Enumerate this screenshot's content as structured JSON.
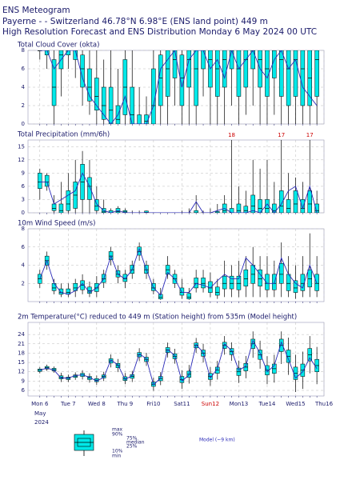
{
  "header": {
    "title": "ENS Meteogram",
    "location": "Payerne -  - Switzerland 46.78°N 6.98°E (ENS land point) 449 m",
    "run": "High Resolution Forecast and ENS Distribution Monday  6 May 2024 00 UTC"
  },
  "time": {
    "x": [
      0,
      6,
      12,
      18,
      24,
      30,
      36,
      42,
      48,
      54,
      60,
      66,
      72,
      78,
      84,
      90,
      96,
      102,
      108,
      114,
      120,
      126,
      132,
      138,
      144,
      150,
      156,
      162,
      168,
      174,
      180,
      186,
      192,
      198,
      204,
      210,
      216,
      222,
      228,
      234
    ],
    "xlim": [
      -10,
      240
    ],
    "xticks": [
      {
        "value": 0,
        "label": "Mon 6"
      },
      {
        "value": 24,
        "label": "Tue 7"
      },
      {
        "value": 48,
        "label": "Wed 8"
      },
      {
        "value": 72,
        "label": "Thu 9"
      },
      {
        "value": 96,
        "label": "Fri10"
      },
      {
        "value": 120,
        "label": "Sat11"
      },
      {
        "value": 144,
        "label": "Sun12",
        "color": "#cc0000"
      },
      {
        "value": 168,
        "label": "Mon13"
      },
      {
        "value": 192,
        "label": "Tue14"
      },
      {
        "value": 216,
        "label": "Wed15"
      },
      {
        "value": 240,
        "label": "Thu16"
      }
    ],
    "month": "May",
    "year": "2024"
  },
  "chart_data": [
    {
      "type": "boxplot",
      "title": "Total Cloud Cover (okta)",
      "ylim": [
        0,
        8
      ],
      "yticks": [
        0,
        2,
        4,
        6,
        8
      ],
      "grid": true,
      "color": "#00e8e8",
      "min": [
        7,
        6,
        0,
        3,
        6,
        5,
        2,
        1,
        0,
        0,
        0,
        0,
        0,
        0,
        0,
        0,
        0,
        0,
        0,
        2,
        0,
        0,
        0,
        3,
        0,
        0,
        0,
        2,
        0,
        1,
        2,
        0,
        0,
        1,
        0,
        0,
        0,
        0,
        0,
        0
      ],
      "q25": [
        8,
        7.5,
        2,
        6,
        7.5,
        7,
        4,
        2.5,
        1.5,
        0.5,
        0,
        0,
        1,
        0,
        0,
        0,
        0,
        2,
        3,
        5,
        2,
        4,
        2,
        6,
        4,
        3,
        4,
        6,
        3,
        4,
        6,
        4,
        3,
        5,
        3,
        2,
        3,
        2,
        2,
        3
      ],
      "median": [
        8,
        8,
        4,
        7.5,
        8,
        8,
        6,
        4,
        3,
        2,
        1.5,
        0.5,
        4,
        1,
        0,
        0.3,
        2,
        5,
        6,
        7,
        5,
        7,
        6,
        8,
        7,
        6,
        7,
        8,
        6,
        7,
        8,
        7,
        6,
        8,
        7,
        6,
        7,
        6,
        5,
        7
      ],
      "q75": [
        8,
        8,
        7,
        8,
        8,
        8,
        7.5,
        6,
        5,
        4,
        4,
        2,
        7,
        4,
        1,
        1,
        6,
        7.5,
        8,
        8,
        7.5,
        8,
        8,
        8,
        8,
        8,
        8,
        8,
        8,
        8,
        8,
        8,
        8,
        8,
        8,
        8,
        8,
        8,
        8,
        8
      ],
      "max": [
        8,
        8,
        8,
        8,
        8,
        8,
        8,
        8,
        8,
        7,
        8,
        6,
        8,
        8,
        4,
        3,
        8,
        8,
        8,
        8,
        8,
        8,
        8,
        8,
        8,
        8,
        8,
        8,
        8,
        8,
        8,
        8,
        8,
        8,
        8,
        8,
        8,
        8,
        8,
        8
      ],
      "model": {
        "color": "#2a2ab8",
        "values": [
          8,
          8,
          6,
          7,
          8,
          8,
          5,
          3,
          2,
          1,
          0,
          1,
          3,
          0,
          0,
          0,
          2,
          6,
          7,
          8,
          4,
          7,
          8,
          8,
          6,
          7,
          5,
          8,
          6,
          7,
          8,
          6,
          5,
          7,
          8,
          6,
          7,
          4,
          3,
          2
        ]
      }
    },
    {
      "type": "boxplot",
      "title": "Total Precipitation (mm/6h)",
      "ylim": [
        0,
        16.5
      ],
      "yticks": [
        0,
        3,
        6,
        9,
        12,
        15
      ],
      "grid": true,
      "color": "#00e8e8",
      "min": [
        3,
        5,
        0,
        0,
        0,
        0,
        0,
        0,
        0,
        0,
        0,
        0,
        0,
        0,
        0,
        0,
        0,
        0,
        0,
        0,
        0,
        0,
        0,
        0,
        0,
        0,
        0,
        0,
        0,
        0,
        0,
        0,
        0,
        0,
        0,
        0,
        0,
        0,
        0,
        0
      ],
      "q25": [
        5.5,
        6,
        0.5,
        0,
        0.5,
        1,
        3,
        3,
        0.5,
        0,
        0,
        0,
        0,
        0,
        0,
        0,
        0,
        0,
        0,
        0,
        0,
        0,
        0,
        0,
        0,
        0,
        0,
        0,
        0,
        0,
        0,
        0,
        0,
        0,
        0,
        0,
        0,
        0,
        0,
        0
      ],
      "median": [
        7,
        7,
        1,
        0.5,
        2,
        4,
        7,
        6,
        1.5,
        0.2,
        0,
        0.3,
        0.2,
        0,
        0,
        0.1,
        0,
        0,
        0,
        0,
        0,
        0,
        0,
        0,
        0,
        0,
        0.5,
        0,
        0.5,
        0.5,
        1.5,
        1,
        1,
        0.5,
        1.5,
        1,
        2,
        1,
        2,
        0.5
      ],
      "q75": [
        9,
        8.5,
        2,
        2,
        5,
        7,
        11,
        8,
        3,
        1,
        0.5,
        1,
        0.5,
        0,
        0,
        0.4,
        0,
        0,
        0,
        0,
        0,
        0,
        0.5,
        0,
        0,
        0.3,
        2,
        1,
        2,
        1.5,
        4,
        3,
        3,
        2,
        5,
        3,
        5,
        3,
        5,
        2
      ],
      "max": [
        10,
        9,
        4,
        7,
        9,
        12,
        14,
        12,
        6,
        3,
        1,
        1.5,
        1,
        0.5,
        0.5,
        0.5,
        0,
        0,
        0,
        0,
        0.5,
        1,
        4,
        0.5,
        1,
        2,
        4,
        18,
        6,
        5,
        12,
        10,
        12,
        7,
        17,
        9,
        8,
        7,
        17,
        5
      ],
      "max_labels": [
        null,
        null,
        null,
        null,
        null,
        null,
        null,
        null,
        null,
        null,
        null,
        null,
        null,
        null,
        null,
        null,
        null,
        null,
        null,
        null,
        null,
        null,
        null,
        null,
        null,
        null,
        null,
        "18",
        null,
        null,
        null,
        null,
        null,
        null,
        "17",
        null,
        null,
        null,
        "17",
        null
      ],
      "model": {
        "color": "#2a2ab8",
        "values": [
          7,
          7,
          2,
          3,
          4,
          5,
          9,
          6,
          2,
          0.5,
          0,
          0.5,
          0,
          0,
          0,
          0,
          0,
          0,
          0,
          0,
          0,
          0,
          2.5,
          0,
          0,
          0.5,
          1,
          0,
          0,
          0,
          0.5,
          0,
          2,
          0,
          2,
          5,
          6,
          1,
          6,
          0
        ]
      }
    },
    {
      "type": "boxplot",
      "title": "10m Wind Speed (m/s)",
      "ylim": [
        0,
        8
      ],
      "yticks": [
        2,
        4,
        6,
        8
      ],
      "grid": true,
      "color": "#00e8e8",
      "min": [
        1.5,
        3.5,
        0.8,
        0.5,
        0.5,
        0.5,
        0.8,
        0.5,
        0.5,
        1.5,
        4,
        2,
        1.5,
        2.5,
        4.5,
        2.5,
        0.8,
        0.2,
        2.5,
        1.5,
        0.3,
        0.2,
        1,
        1,
        0.5,
        0.3,
        0.5,
        0.5,
        0.5,
        0.5,
        0.5,
        0.5,
        0.5,
        0.5,
        0.5,
        0.5,
        0.3,
        0.5,
        0.5,
        0.5
      ],
      "q25": [
        2,
        4,
        1.2,
        0.8,
        0.8,
        1.2,
        1.3,
        0.9,
        1.1,
        2.1,
        4.6,
        2.7,
        2.2,
        3.1,
        5.1,
        3.1,
        1.2,
        0.3,
        3,
        2,
        0.7,
        0.3,
        1.5,
        1.5,
        1,
        0.7,
        1.4,
        1.4,
        1.3,
        1.7,
        2,
        1.7,
        1.3,
        1.3,
        2,
        1.2,
        1,
        1.2,
        1.6,
        1.2
      ],
      "median": [
        2.5,
        4.5,
        1.5,
        1,
        1,
        1.5,
        1.8,
        1.2,
        1.5,
        2.5,
        5,
        3,
        2.5,
        3.5,
        5.5,
        3.5,
        1.5,
        0.5,
        3.5,
        2.5,
        1,
        0.5,
        2,
        2,
        1.5,
        1,
        2,
        2,
        2,
        2.5,
        3,
        2.5,
        2,
        2,
        3,
        2,
        1.5,
        2,
        2.5,
        2
      ],
      "q75": [
        3,
        5,
        2,
        1.4,
        1.4,
        2,
        2.3,
        1.6,
        2,
        3,
        5.5,
        3.4,
        3,
        4,
        6,
        4,
        2,
        0.8,
        4,
        3,
        1.5,
        0.9,
        2.6,
        2.6,
        2.2,
        1.6,
        2.8,
        2.8,
        2.8,
        3.5,
        4,
        3.5,
        3,
        3,
        4.2,
        3,
        2.3,
        3,
        3.5,
        3
      ],
      "max": [
        3.5,
        5.5,
        2.5,
        2,
        2,
        2.5,
        3,
        2.2,
        2.8,
        3.5,
        6,
        4,
        3.5,
        4.5,
        6.5,
        4.5,
        2.5,
        1.5,
        5,
        3.5,
        2.5,
        1.5,
        3.5,
        3.5,
        3.2,
        2.5,
        4.5,
        4,
        4.5,
        5,
        6,
        5,
        5,
        4.5,
        6.5,
        5,
        4,
        5,
        7.5,
        5
      ],
      "model": {
        "color": "#2a2ab8",
        "values": [
          2.5,
          4.5,
          2,
          1,
          0.8,
          1.2,
          2,
          1,
          1.5,
          2.5,
          5,
          3,
          2.5,
          3.5,
          5.8,
          3.5,
          1.5,
          0.7,
          3.2,
          2.5,
          1,
          1,
          2,
          1.8,
          1.5,
          2.3,
          3,
          2.5,
          2.5,
          4.8,
          4,
          3,
          2,
          2,
          4.8,
          3,
          2,
          1.5,
          4,
          2
        ]
      }
    },
    {
      "type": "boxplot",
      "title": "2m Temperature(°C) reduced to 449 m (Station height) from 535m (Model height)",
      "ylim": [
        4.2,
        27.9
      ],
      "yticks": [
        6,
        9,
        12,
        15,
        18,
        21,
        24
      ],
      "grid": true,
      "color": "#00e8e8",
      "min": [
        11.5,
        12.3,
        11.7,
        8.7,
        8.7,
        9.4,
        9.5,
        8.5,
        7.8,
        9,
        13.4,
        11.9,
        8,
        8.7,
        15.4,
        13.9,
        5.9,
        7.7,
        16.6,
        14.6,
        6.5,
        8.2,
        18.1,
        15,
        7.5,
        9.5,
        17.5,
        15.5,
        8.4,
        9.9,
        16.5,
        13,
        8,
        8.5,
        14.5,
        11,
        5.5,
        6.5,
        11.5,
        8
      ],
      "q25": [
        12.1,
        12.9,
        12.3,
        9.7,
        9.5,
        10.2,
        10.5,
        9.5,
        8.8,
        10,
        14.8,
        13.3,
        9.2,
        9.9,
        16.8,
        15.3,
        7.3,
        9.1,
        18.2,
        16.2,
        8.5,
        10.2,
        19.7,
        17,
        9.5,
        11.5,
        19.5,
        17.5,
        10.8,
        12.3,
        19.5,
        16,
        11,
        11.5,
        18.5,
        15,
        9.5,
        10.5,
        15.5,
        12
      ],
      "median": [
        12.5,
        13.3,
        12.7,
        10.2,
        9.9,
        10.6,
        11,
        10,
        9.3,
        10.5,
        15.5,
        14,
        9.8,
        10.5,
        17.5,
        16,
        8,
        9.8,
        19,
        17,
        9.5,
        11.2,
        20.5,
        18,
        10.5,
        12.5,
        20.5,
        18.5,
        12,
        13.5,
        21,
        17.5,
        12.5,
        13,
        20.5,
        17,
        11.5,
        12.5,
        17.5,
        14
      ],
      "q75": [
        12.9,
        13.7,
        13.1,
        10.7,
        10.3,
        11,
        11.5,
        10.5,
        9.8,
        11,
        16.2,
        14.7,
        10.4,
        11.1,
        18.2,
        16.7,
        8.7,
        10.5,
        19.8,
        17.8,
        10.5,
        12.2,
        21.3,
        19,
        11.5,
        13.5,
        21.5,
        19.5,
        13.2,
        14.7,
        22.5,
        19,
        14,
        14.5,
        22.5,
        19,
        13.5,
        14.5,
        19.5,
        16
      ],
      "max": [
        13.5,
        14.3,
        13.7,
        11.7,
        11.1,
        11.8,
        12.5,
        11.5,
        10.8,
        12,
        17.6,
        16.1,
        11.6,
        12.3,
        19.6,
        18.1,
        10.1,
        11.9,
        21.4,
        19.4,
        12.5,
        14.2,
        22.9,
        21,
        13.5,
        15.5,
        23.5,
        21.5,
        15.6,
        17.1,
        25,
        22,
        17,
        17.5,
        25,
        23,
        17.5,
        18.5,
        23.5,
        20
      ],
      "model": {
        "color": "#2a2ab8",
        "values": [
          12.5,
          13.2,
          12.5,
          10,
          10,
          10.8,
          11,
          10.2,
          9,
          10.2,
          15.8,
          14.2,
          9.5,
          10.8,
          17.8,
          16.2,
          7.8,
          10,
          19.2,
          17.2,
          9,
          11,
          20.8,
          18.2,
          10,
          13,
          21,
          18.8,
          12.5,
          13.8,
          22,
          18,
          12,
          14,
          21.5,
          16,
          10,
          12,
          16.5,
          13
        ]
      }
    }
  ],
  "legend": {
    "max": "max",
    "p90": "90%",
    "p75": "75%",
    "median": "median",
    "p25": "25%",
    "p10": "10%",
    "min": "min",
    "model": "Model (~9 km)"
  }
}
